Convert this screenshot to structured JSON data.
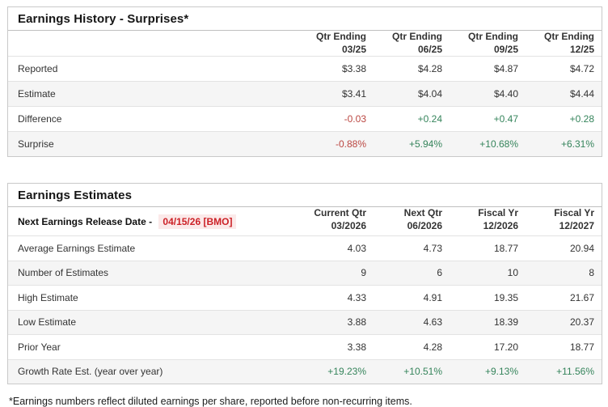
{
  "colors": {
    "pos": "#35845b",
    "neg": "#bb4742",
    "date_red": "#cc2127",
    "date_bg": "#fbe9e9"
  },
  "history": {
    "title": "Earnings History - Surprises*",
    "columns": [
      {
        "line1": "Qtr Ending",
        "line2": "03/25"
      },
      {
        "line1": "Qtr Ending",
        "line2": "06/25"
      },
      {
        "line1": "Qtr Ending",
        "line2": "09/25"
      },
      {
        "line1": "Qtr Ending",
        "line2": "12/25"
      }
    ],
    "rows": [
      {
        "label": "Reported",
        "values": [
          {
            "text": "$3.38"
          },
          {
            "text": "$4.28"
          },
          {
            "text": "$4.87"
          },
          {
            "text": "$4.72"
          }
        ]
      },
      {
        "label": "Estimate",
        "values": [
          {
            "text": "$3.41"
          },
          {
            "text": "$4.04"
          },
          {
            "text": "$4.40"
          },
          {
            "text": "$4.44"
          }
        ]
      },
      {
        "label": "Difference",
        "values": [
          {
            "text": "-0.03",
            "tone": "neg"
          },
          {
            "text": "+0.24",
            "tone": "pos"
          },
          {
            "text": "+0.47",
            "tone": "pos"
          },
          {
            "text": "+0.28",
            "tone": "pos"
          }
        ]
      },
      {
        "label": "Surprise",
        "values": [
          {
            "text": "-0.88%",
            "tone": "neg"
          },
          {
            "text": "+5.94%",
            "tone": "pos"
          },
          {
            "text": "+10.68%",
            "tone": "pos"
          },
          {
            "text": "+6.31%",
            "tone": "pos"
          }
        ]
      }
    ]
  },
  "estimates": {
    "title": "Earnings Estimates",
    "release_label": "Next Earnings Release Date - ",
    "release_date": "04/15/26 [BMO]",
    "columns": [
      {
        "line1": "Current Qtr",
        "line2": "03/2026"
      },
      {
        "line1": "Next Qtr",
        "line2": "06/2026"
      },
      {
        "line1": "Fiscal Yr",
        "line2": "12/2026"
      },
      {
        "line1": "Fiscal Yr",
        "line2": "12/2027"
      }
    ],
    "rows": [
      {
        "label": "Average Earnings Estimate",
        "values": [
          {
            "text": "4.03"
          },
          {
            "text": "4.73"
          },
          {
            "text": "18.77"
          },
          {
            "text": "20.94"
          }
        ]
      },
      {
        "label": "Number of Estimates",
        "values": [
          {
            "text": "9"
          },
          {
            "text": "6"
          },
          {
            "text": "10"
          },
          {
            "text": "8"
          }
        ]
      },
      {
        "label": "High Estimate",
        "values": [
          {
            "text": "4.33"
          },
          {
            "text": "4.91"
          },
          {
            "text": "19.35"
          },
          {
            "text": "21.67"
          }
        ]
      },
      {
        "label": "Low Estimate",
        "values": [
          {
            "text": "3.88"
          },
          {
            "text": "4.63"
          },
          {
            "text": "18.39"
          },
          {
            "text": "20.37"
          }
        ]
      },
      {
        "label": "Prior Year",
        "values": [
          {
            "text": "3.38"
          },
          {
            "text": "4.28"
          },
          {
            "text": "17.20"
          },
          {
            "text": "18.77"
          }
        ]
      },
      {
        "label": "Growth Rate Est. (year over year)",
        "values": [
          {
            "text": "+19.23%",
            "tone": "pos"
          },
          {
            "text": "+10.51%",
            "tone": "pos"
          },
          {
            "text": "+9.13%",
            "tone": "pos"
          },
          {
            "text": "+11.56%",
            "tone": "pos"
          }
        ]
      }
    ]
  },
  "footnote": "*Earnings numbers reflect diluted earnings per share, reported before non-recurring items."
}
